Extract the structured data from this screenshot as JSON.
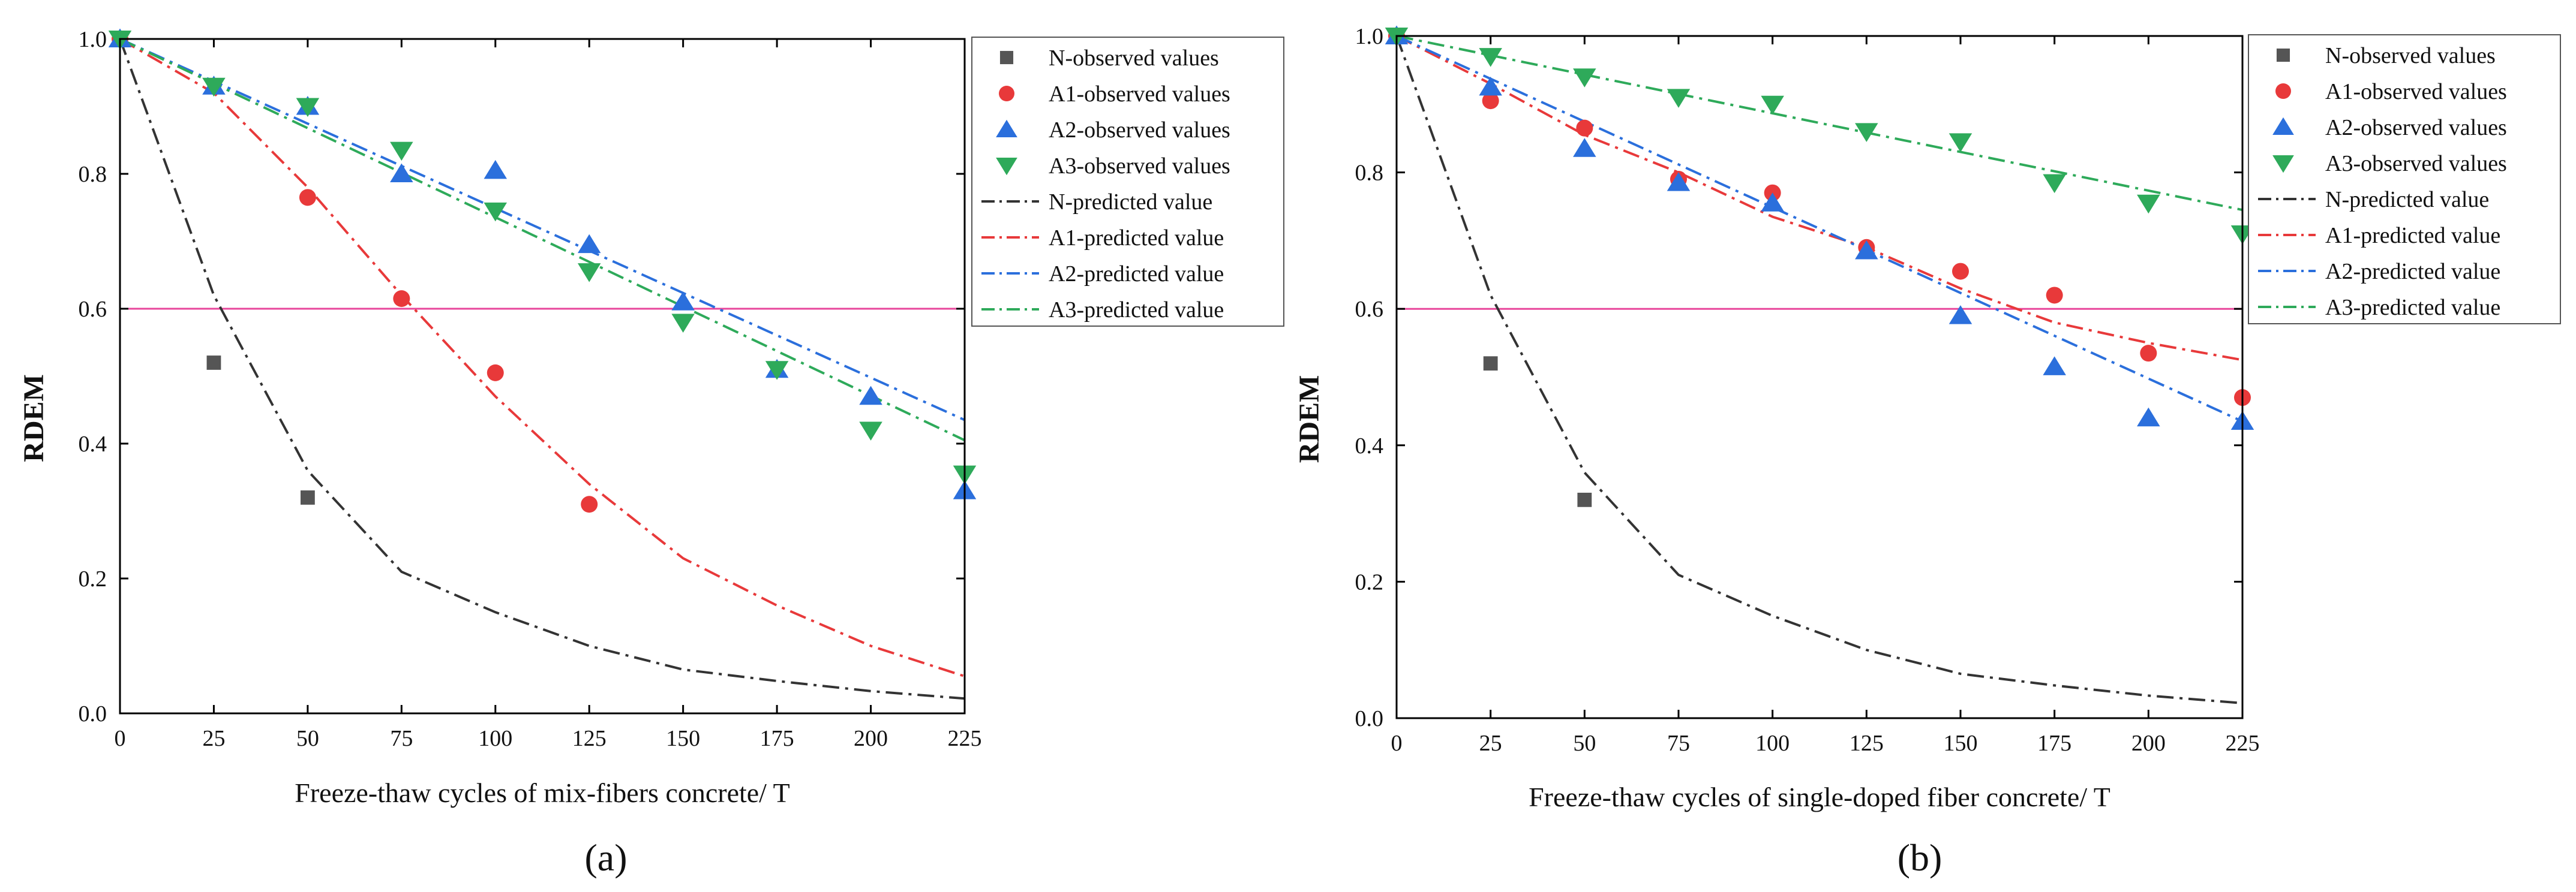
{
  "chart_data": [
    {
      "type": "scatter",
      "panel": "a",
      "caption": "(a)",
      "xlabel": "Freeze-thaw cycles of mix-fibers concrete/ T",
      "ylabel": "RDEM",
      "xlim": [
        0,
        225
      ],
      "ylim": [
        0,
        1.0
      ],
      "xticks": [
        0,
        25,
        50,
        75,
        100,
        125,
        150,
        175,
        200,
        225
      ],
      "yticks": [
        0.0,
        0.2,
        0.4,
        0.6,
        0.8,
        1.0
      ],
      "xtick_labels": [
        "0",
        "25",
        "50",
        "75",
        "100",
        "125",
        "150",
        "175",
        "200",
        "225"
      ],
      "ytick_labels": [
        "0.0",
        "0.2",
        "0.4",
        "0.6",
        "0.8",
        "1.0"
      ],
      "reference_line": {
        "y": 0.6,
        "color": "#e8469b"
      },
      "legend_position": "top-right",
      "observed": [
        {
          "name": "N-observed values",
          "marker": "square",
          "color": "#555555",
          "points": [
            [
              0,
              1.0
            ],
            [
              25,
              0.52
            ],
            [
              50,
              0.32
            ]
          ]
        },
        {
          "name": "A1-observed values",
          "marker": "circle",
          "color": "#e8393a",
          "points": [
            [
              0,
              1.0
            ],
            [
              50,
              0.765
            ],
            [
              75,
              0.615
            ],
            [
              100,
              0.505
            ],
            [
              125,
              0.31
            ]
          ]
        },
        {
          "name": "A2-observed values",
          "marker": "triangle-up",
          "color": "#2b6fdc",
          "points": [
            [
              0,
              1.0
            ],
            [
              25,
              0.93
            ],
            [
              50,
              0.9
            ],
            [
              75,
              0.8
            ],
            [
              100,
              0.805
            ],
            [
              125,
              0.695
            ],
            [
              150,
              0.61
            ],
            [
              175,
              0.51
            ],
            [
              200,
              0.47
            ],
            [
              225,
              0.33
            ]
          ]
        },
        {
          "name": "A3-observed values",
          "marker": "triangle-down",
          "color": "#2eaa5a",
          "points": [
            [
              0,
              1.0
            ],
            [
              25,
              0.93
            ],
            [
              50,
              0.9
            ],
            [
              75,
              0.835
            ],
            [
              100,
              0.745
            ],
            [
              125,
              0.655
            ],
            [
              150,
              0.58
            ],
            [
              175,
              0.51
            ],
            [
              200,
              0.42
            ],
            [
              225,
              0.355
            ]
          ]
        }
      ],
      "predicted": [
        {
          "name": "N-predicted value",
          "color": "#333333",
          "points": [
            [
              0,
              1.0
            ],
            [
              25,
              0.62
            ],
            [
              50,
              0.36
            ],
            [
              75,
              0.21
            ],
            [
              100,
              0.15
            ],
            [
              125,
              0.1
            ],
            [
              150,
              0.065
            ],
            [
              175,
              0.048
            ],
            [
              200,
              0.033
            ],
            [
              225,
              0.022
            ]
          ]
        },
        {
          "name": "A1-predicted value",
          "color": "#e8393a",
          "points": [
            [
              0,
              1.0
            ],
            [
              25,
              0.92
            ],
            [
              50,
              0.78
            ],
            [
              75,
              0.62
            ],
            [
              100,
              0.47
            ],
            [
              125,
              0.34
            ],
            [
              150,
              0.23
            ],
            [
              175,
              0.16
            ],
            [
              200,
              0.1
            ],
            [
              225,
              0.055
            ]
          ]
        },
        {
          "name": "A2-predicted value",
          "color": "#2b6fdc",
          "points": [
            [
              0,
              1.0
            ],
            [
              225,
              0.435
            ]
          ]
        },
        {
          "name": "A3-predicted value",
          "color": "#2eaa5a",
          "points": [
            [
              0,
              1.0
            ],
            [
              225,
              0.405
            ]
          ]
        }
      ]
    },
    {
      "type": "scatter",
      "panel": "b",
      "caption": "(b)",
      "xlabel": "Freeze-thaw cycles of single-doped fiber concrete/ T",
      "ylabel": "RDEM",
      "xlim": [
        0,
        225
      ],
      "ylim": [
        0,
        1.0
      ],
      "xticks": [
        0,
        25,
        50,
        75,
        100,
        125,
        150,
        175,
        200,
        225
      ],
      "yticks": [
        0.0,
        0.2,
        0.4,
        0.6,
        0.8,
        1.0
      ],
      "xtick_labels": [
        "0",
        "25",
        "50",
        "75",
        "100",
        "125",
        "150",
        "175",
        "200",
        "225"
      ],
      "ytick_labels": [
        "0.0",
        "0.2",
        "0.4",
        "0.6",
        "0.8",
        "1.0"
      ],
      "reference_line": {
        "y": 0.6,
        "color": "#e8469b"
      },
      "legend_position": "top-right",
      "observed": [
        {
          "name": "N-observed values",
          "marker": "square",
          "color": "#555555",
          "points": [
            [
              0,
              1.0
            ],
            [
              25,
              0.52
            ],
            [
              50,
              0.32
            ]
          ]
        },
        {
          "name": "A1-observed values",
          "marker": "circle",
          "color": "#e8393a",
          "points": [
            [
              0,
              1.0
            ],
            [
              25,
              0.905
            ],
            [
              50,
              0.865
            ],
            [
              75,
              0.79
            ],
            [
              100,
              0.77
            ],
            [
              125,
              0.69
            ],
            [
              150,
              0.655
            ],
            [
              175,
              0.62
            ],
            [
              200,
              0.535
            ],
            [
              225,
              0.47
            ]
          ]
        },
        {
          "name": "A2-observed values",
          "marker": "triangle-up",
          "color": "#2b6fdc",
          "points": [
            [
              0,
              1.0
            ],
            [
              25,
              0.925
            ],
            [
              50,
              0.835
            ],
            [
              75,
              0.785
            ],
            [
              100,
              0.755
            ],
            [
              125,
              0.685
            ],
            [
              150,
              0.59
            ],
            [
              175,
              0.515
            ],
            [
              200,
              0.44
            ],
            [
              225,
              0.435
            ]
          ]
        },
        {
          "name": "A3-observed values",
          "marker": "triangle-down",
          "color": "#2eaa5a",
          "points": [
            [
              0,
              1.0
            ],
            [
              25,
              0.97
            ],
            [
              50,
              0.94
            ],
            [
              75,
              0.91
            ],
            [
              100,
              0.9
            ],
            [
              125,
              0.86
            ],
            [
              150,
              0.845
            ],
            [
              175,
              0.785
            ],
            [
              200,
              0.755
            ],
            [
              225,
              0.71
            ]
          ]
        }
      ],
      "predicted": [
        {
          "name": "N-predicted value",
          "color": "#333333",
          "points": [
            [
              0,
              1.0
            ],
            [
              25,
              0.62
            ],
            [
              50,
              0.36
            ],
            [
              75,
              0.21
            ],
            [
              100,
              0.15
            ],
            [
              125,
              0.1
            ],
            [
              150,
              0.065
            ],
            [
              175,
              0.048
            ],
            [
              200,
              0.033
            ],
            [
              225,
              0.022
            ]
          ]
        },
        {
          "name": "A1-predicted value",
          "color": "#e8393a",
          "points": [
            [
              0,
              1.0
            ],
            [
              25,
              0.93
            ],
            [
              50,
              0.855
            ],
            [
              75,
              0.8
            ],
            [
              100,
              0.735
            ],
            [
              125,
              0.69
            ],
            [
              150,
              0.63
            ],
            [
              175,
              0.58
            ],
            [
              200,
              0.55
            ],
            [
              225,
              0.525
            ]
          ]
        },
        {
          "name": "A2-predicted value",
          "color": "#2b6fdc",
          "points": [
            [
              0,
              1.0
            ],
            [
              225,
              0.435
            ]
          ]
        },
        {
          "name": "A3-predicted value",
          "color": "#2eaa5a",
          "points": [
            [
              0,
              1.0
            ],
            [
              225,
              0.745
            ]
          ]
        }
      ]
    }
  ]
}
